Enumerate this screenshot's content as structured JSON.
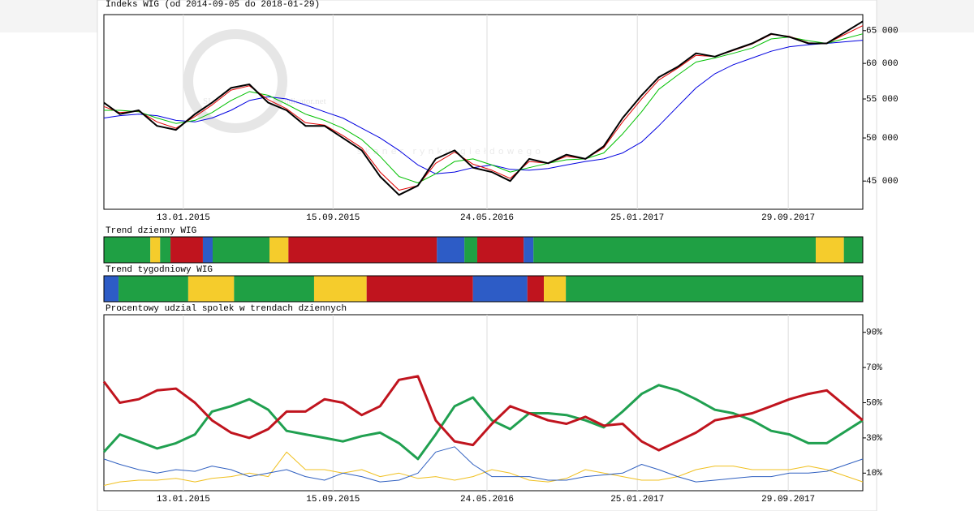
{
  "watermark": {
    "logo": "SI",
    "text": "ndicator.net",
    "tagline": "skaner rynku giełdowego"
  },
  "chart_data": [
    {
      "type": "line",
      "title": "Indeks WIG (od 2014-09-05 do 2018-01-29)",
      "log_scale": true,
      "grid": true,
      "x": [
        "2014-09-05",
        "2014-10-01",
        "2014-11-01",
        "2014-12-01",
        "2015-01-01",
        "2015-02-01",
        "2015-03-01",
        "2015-04-01",
        "2015-05-01",
        "2015-06-01",
        "2015-07-01",
        "2015-08-01",
        "2015-09-01",
        "2015-10-01",
        "2015-11-01",
        "2015-12-01",
        "2016-01-01",
        "2016-02-01",
        "2016-03-01",
        "2016-04-01",
        "2016-05-01",
        "2016-06-01",
        "2016-07-01",
        "2016-08-01",
        "2016-09-01",
        "2016-10-01",
        "2016-11-01",
        "2016-12-01",
        "2017-01-01",
        "2017-02-01",
        "2017-03-01",
        "2017-04-01",
        "2017-05-01",
        "2017-06-01",
        "2017-07-01",
        "2017-08-01",
        "2017-09-01",
        "2017-10-01",
        "2017-11-01",
        "2017-12-01",
        "2018-01-29"
      ],
      "series": [
        {
          "color": "#0000e0",
          "width": 1,
          "values": [
            52500,
            52800,
            53000,
            52800,
            52200,
            52000,
            52500,
            53500,
            54800,
            55300,
            55000,
            54200,
            53300,
            52500,
            51200,
            50000,
            48500,
            46800,
            45800,
            46000,
            46500,
            46800,
            46300,
            46200,
            46400,
            46800,
            47200,
            47500,
            48200,
            49500,
            51500,
            54000,
            56500,
            58500,
            59800,
            60800,
            61800,
            62500,
            62800,
            63000,
            63500
          ]
        },
        {
          "color": "#00c000",
          "width": 1,
          "values": [
            53500,
            53500,
            53300,
            52500,
            51800,
            52200,
            53200,
            54800,
            56000,
            55500,
            54300,
            53000,
            52200,
            51200,
            49800,
            47800,
            45500,
            44800,
            45800,
            47200,
            47500,
            46800,
            46000,
            46500,
            47000,
            47400,
            47500,
            48200,
            50500,
            53300,
            56300,
            58300,
            60200,
            60800,
            61500,
            62300,
            63700,
            64000,
            63400,
            63000,
            64500
          ]
        },
        {
          "color": "#e00000",
          "width": 1,
          "values": [
            54000,
            53200,
            53400,
            52000,
            51200,
            52700,
            54200,
            56200,
            56800,
            54900,
            53700,
            51900,
            51600,
            50300,
            48800,
            46000,
            44000,
            44500,
            47000,
            48300,
            46900,
            46200,
            45300,
            47200,
            47000,
            47800,
            47500,
            48800,
            52000,
            55000,
            57600,
            59300,
            61200,
            61000,
            61900,
            62900,
            64400,
            64100,
            63100,
            63000,
            65800
          ]
        },
        {
          "color": "#000000",
          "width": 2,
          "values": [
            54500,
            53000,
            53500,
            51500,
            51000,
            53000,
            54500,
            56500,
            57000,
            54500,
            53500,
            51500,
            51500,
            50000,
            48500,
            45500,
            43500,
            44500,
            47500,
            48500,
            46500,
            46000,
            45000,
            47500,
            47000,
            48000,
            47500,
            49000,
            52500,
            55500,
            58000,
            59500,
            61500,
            61000,
            62000,
            63000,
            64500,
            64000,
            63000,
            63000,
            66500
          ]
        }
      ],
      "xlim": [
        "2014-09-05",
        "2018-01-29"
      ],
      "xticks": [
        {
          "value": "2015-01-13",
          "label": "13.01.2015"
        },
        {
          "value": "2015-09-15",
          "label": "15.09.2015"
        },
        {
          "value": "2016-05-24",
          "label": "24.05.2016"
        },
        {
          "value": "2017-01-25",
          "label": "25.01.2017"
        },
        {
          "value": "2017-09-29",
          "label": "29.09.2017"
        }
      ],
      "ylim": [
        42000,
        67600
      ],
      "yticks": [
        {
          "value": 45000,
          "label": "45 000"
        },
        {
          "value": 50000,
          "label": "50 000"
        },
        {
          "value": 55000,
          "label": "55 000"
        },
        {
          "value": 60000,
          "label": "60 000"
        },
        {
          "value": 65000,
          "label": "65 000"
        }
      ]
    },
    {
      "type": "strip",
      "title": "Trend dzienny WIG",
      "xlim": [
        "2014-09-05",
        "2018-01-29"
      ],
      "segments": [
        {
          "start": "2014-09-05",
          "color": "#1fa044"
        },
        {
          "start": "2014-11-20",
          "color": "#f5cc2c"
        },
        {
          "start": "2014-12-06",
          "color": "#1fa044"
        },
        {
          "start": "2014-12-23",
          "color": "#c0141e"
        },
        {
          "start": "2015-02-14",
          "color": "#2d5cc6"
        },
        {
          "start": "2015-03-02",
          "color": "#1fa044"
        },
        {
          "start": "2015-06-03",
          "color": "#f5cc2c"
        },
        {
          "start": "2015-07-04",
          "color": "#c0141e"
        },
        {
          "start": "2016-03-03",
          "color": "#2d5cc6"
        },
        {
          "start": "2016-04-17",
          "color": "#1fa044"
        },
        {
          "start": "2016-05-08",
          "color": "#c0141e"
        },
        {
          "start": "2016-07-23",
          "color": "#2d5cc6"
        },
        {
          "start": "2016-08-08",
          "color": "#1fa044"
        },
        {
          "start": "2017-11-13",
          "color": "#f5cc2c"
        },
        {
          "start": "2017-12-29",
          "color": "#1fa044"
        }
      ]
    },
    {
      "type": "strip",
      "title": "Trend tygodniowy WIG",
      "xlim": [
        "2014-09-05",
        "2018-01-29"
      ],
      "segments": [
        {
          "start": "2014-09-05",
          "color": "#2d5cc6"
        },
        {
          "start": "2014-09-29",
          "color": "#1fa044"
        },
        {
          "start": "2015-01-21",
          "color": "#f5cc2c"
        },
        {
          "start": "2015-04-06",
          "color": "#1fa044"
        },
        {
          "start": "2015-08-15",
          "color": "#f5cc2c"
        },
        {
          "start": "2015-11-09",
          "color": "#c0141e"
        },
        {
          "start": "2016-05-01",
          "color": "#2d5cc6"
        },
        {
          "start": "2016-07-29",
          "color": "#c0141e"
        },
        {
          "start": "2016-08-25",
          "color": "#f5cc2c"
        },
        {
          "start": "2016-09-30",
          "color": "#1fa044"
        }
      ]
    },
    {
      "type": "line",
      "title": "Procentowy udzial spolek w trendach dziennych",
      "log_scale": false,
      "grid": true,
      "x": [
        "2014-09-05",
        "2014-10-01",
        "2014-11-01",
        "2014-12-01",
        "2015-01-01",
        "2015-02-01",
        "2015-03-01",
        "2015-04-01",
        "2015-05-01",
        "2015-06-01",
        "2015-07-01",
        "2015-08-01",
        "2015-09-01",
        "2015-10-01",
        "2015-11-01",
        "2015-12-01",
        "2016-01-01",
        "2016-02-01",
        "2016-03-01",
        "2016-04-01",
        "2016-05-01",
        "2016-06-01",
        "2016-07-01",
        "2016-08-01",
        "2016-09-01",
        "2016-10-01",
        "2016-11-01",
        "2016-12-01",
        "2017-01-01",
        "2017-02-01",
        "2017-03-01",
        "2017-04-01",
        "2017-05-01",
        "2017-06-01",
        "2017-07-01",
        "2017-08-01",
        "2017-09-01",
        "2017-10-01",
        "2017-11-01",
        "2017-12-01",
        "2018-01-29"
      ],
      "series": [
        {
          "color": "#f0c020",
          "width": 1,
          "values": [
            3,
            5,
            6,
            6,
            7,
            5,
            7,
            8,
            10,
            8,
            22,
            12,
            12,
            10,
            12,
            8,
            10,
            7,
            8,
            6,
            8,
            12,
            10,
            6,
            5,
            7,
            12,
            10,
            8,
            6,
            6,
            8,
            12,
            14,
            14,
            12,
            12,
            12,
            14,
            12,
            5
          ]
        },
        {
          "color": "#3060c0",
          "width": 1,
          "values": [
            18,
            15,
            12,
            10,
            12,
            11,
            14,
            12,
            8,
            10,
            12,
            8,
            6,
            10,
            8,
            5,
            6,
            10,
            22,
            25,
            15,
            8,
            8,
            8,
            6,
            6,
            8,
            9,
            10,
            15,
            12,
            8,
            5,
            6,
            7,
            8,
            8,
            10,
            10,
            11,
            18
          ]
        },
        {
          "color": "#20a050",
          "width": 3,
          "values": [
            22,
            32,
            28,
            24,
            27,
            32,
            45,
            48,
            52,
            46,
            34,
            32,
            30,
            28,
            31,
            33,
            27,
            18,
            32,
            48,
            53,
            40,
            35,
            44,
            44,
            43,
            40,
            36,
            45,
            55,
            60,
            57,
            52,
            46,
            44,
            40,
            34,
            32,
            27,
            27,
            40
          ]
        },
        {
          "color": "#c0141e",
          "width": 3,
          "values": [
            62,
            50,
            52,
            57,
            58,
            50,
            40,
            33,
            30,
            35,
            45,
            45,
            52,
            50,
            43,
            48,
            63,
            65,
            40,
            28,
            26,
            38,
            48,
            44,
            40,
            38,
            42,
            37,
            38,
            28,
            23,
            28,
            33,
            40,
            42,
            44,
            48,
            52,
            55,
            57,
            40
          ]
        }
      ],
      "xlim": [
        "2014-09-05",
        "2018-01-29"
      ],
      "xticks": [
        {
          "value": "2015-01-13",
          "label": "13.01.2015"
        },
        {
          "value": "2015-09-15",
          "label": "15.09.2015"
        },
        {
          "value": "2016-05-24",
          "label": "24.05.2016"
        },
        {
          "value": "2017-01-25",
          "label": "25.01.2017"
        },
        {
          "value": "2017-09-29",
          "label": "29.09.2017"
        }
      ],
      "ylim": [
        0,
        100
      ],
      "yticks": [
        {
          "value": 10,
          "label": "10%"
        },
        {
          "value": 30,
          "label": "30%"
        },
        {
          "value": 50,
          "label": "50%"
        },
        {
          "value": 70,
          "label": "70%"
        },
        {
          "value": 90,
          "label": "90%"
        }
      ]
    }
  ]
}
